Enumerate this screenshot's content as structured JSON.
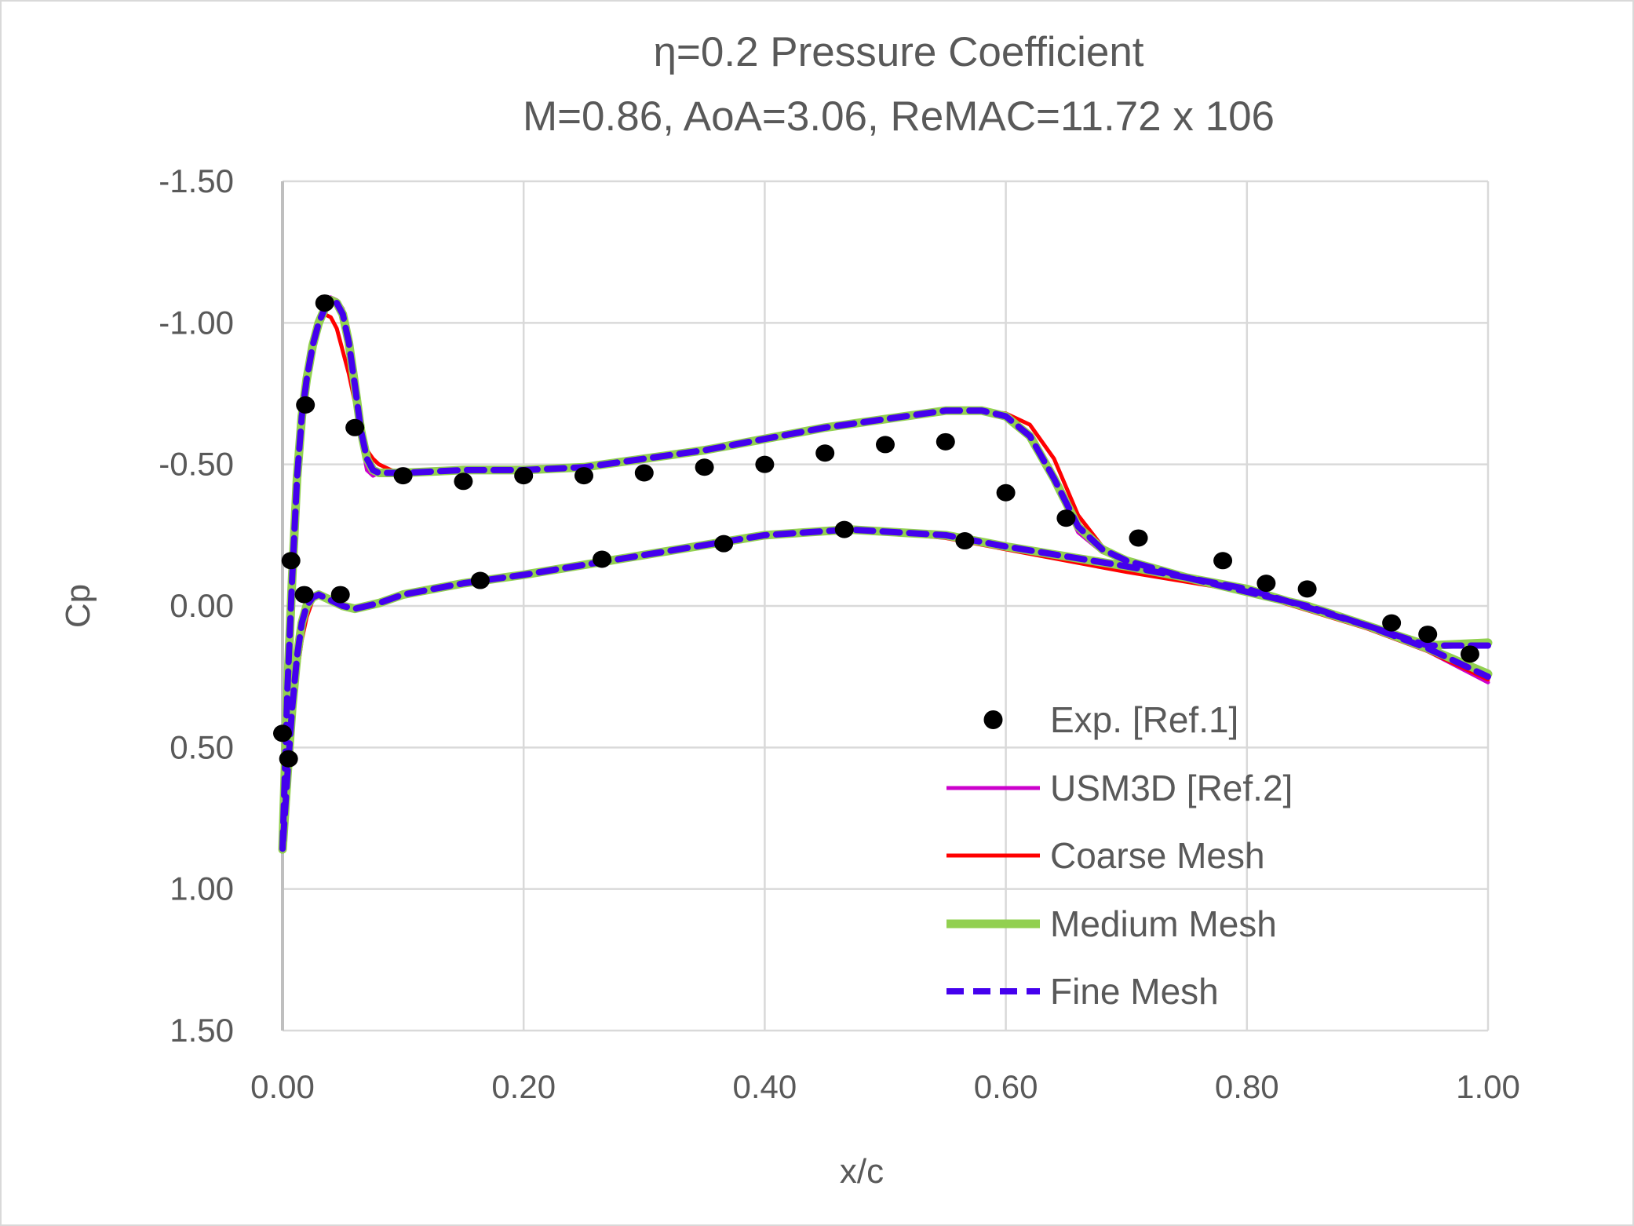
{
  "chart_data": {
    "type": "line",
    "title": "η=0.2 Pressure Coefficient",
    "subtitle": "M=0.86, AoA=3.06, ReMAC=11.72 x 106",
    "xlabel": "x/c",
    "ylabel": "Cp",
    "xlim": [
      0,
      1
    ],
    "ylim": [
      -1.5,
      1.5
    ],
    "y_reversed": true,
    "xticks": [
      "0.00",
      "0.20",
      "0.40",
      "0.60",
      "0.80",
      "1.00"
    ],
    "yticks": [
      "-1.50",
      "-1.00",
      "-0.50",
      "0.00",
      "0.50",
      "1.00",
      "1.50"
    ],
    "grid": true,
    "legend_position": "bottom-right",
    "x_upper": [
      0,
      0.004,
      0.008,
      0.012,
      0.016,
      0.02,
      0.025,
      0.03,
      0.035,
      0.04,
      0.045,
      0.05,
      0.055,
      0.06,
      0.065,
      0.07,
      0.075,
      0.08,
      0.09,
      0.1,
      0.15,
      0.2,
      0.25,
      0.3,
      0.35,
      0.4,
      0.45,
      0.5,
      0.55,
      0.58,
      0.6,
      0.62,
      0.64,
      0.66,
      0.68,
      0.7,
      0.75,
      0.8,
      0.85,
      0.9,
      0.95,
      1.0
    ],
    "x_lower": [
      0,
      0.004,
      0.008,
      0.012,
      0.016,
      0.02,
      0.025,
      0.03,
      0.04,
      0.05,
      0.06,
      0.08,
      0.1,
      0.15,
      0.2,
      0.3,
      0.4,
      0.47,
      0.55,
      0.6,
      0.7,
      0.8,
      0.9,
      0.95,
      1.0
    ],
    "experiment": {
      "name": "Exp. [Ref.1]",
      "color": "#000000",
      "points": [
        [
          0.0,
          0.45
        ],
        [
          0.005,
          0.54
        ],
        [
          0.007,
          -0.16
        ],
        [
          0.018,
          -0.04
        ],
        [
          0.019,
          -0.71
        ],
        [
          0.035,
          -1.07
        ],
        [
          0.048,
          -0.04
        ],
        [
          0.06,
          -0.63
        ],
        [
          0.1,
          -0.46
        ],
        [
          0.15,
          -0.44
        ],
        [
          0.2,
          -0.46
        ],
        [
          0.25,
          -0.46
        ],
        [
          0.3,
          -0.47
        ],
        [
          0.35,
          -0.49
        ],
        [
          0.4,
          -0.5
        ],
        [
          0.45,
          -0.54
        ],
        [
          0.5,
          -0.57
        ],
        [
          0.55,
          -0.58
        ],
        [
          0.6,
          -0.4
        ],
        [
          0.65,
          -0.31
        ],
        [
          0.71,
          -0.24
        ],
        [
          0.78,
          -0.16
        ],
        [
          0.816,
          -0.08
        ],
        [
          0.85,
          -0.06
        ],
        [
          0.92,
          0.06
        ],
        [
          0.95,
          0.1
        ],
        [
          0.985,
          0.17
        ],
        [
          0.164,
          -0.09
        ],
        [
          0.265,
          -0.165
        ],
        [
          0.366,
          -0.22
        ],
        [
          0.466,
          -0.27
        ],
        [
          0.566,
          -0.23
        ]
      ]
    },
    "series": [
      {
        "name": "USM3D [Ref.2]",
        "color": "#CC00CC",
        "style": "solid",
        "upper": [
          0.86,
          0.3,
          -0.1,
          -0.45,
          -0.67,
          -0.8,
          -0.92,
          -1.0,
          -1.06,
          -1.09,
          -1.08,
          -1.05,
          -0.96,
          -0.8,
          -0.6,
          -0.48,
          -0.46,
          -0.47,
          -0.47,
          -0.47,
          -0.48,
          -0.48,
          -0.49,
          -0.52,
          -0.55,
          -0.59,
          -0.63,
          -0.66,
          -0.69,
          -0.69,
          -0.67,
          -0.6,
          -0.44,
          -0.26,
          -0.19,
          -0.16,
          -0.1,
          -0.05,
          0.0,
          0.08,
          0.16,
          0.27
        ],
        "lower": [
          0.86,
          0.6,
          0.36,
          0.18,
          0.06,
          0.0,
          -0.03,
          -0.04,
          -0.02,
          0.0,
          0.01,
          -0.01,
          -0.04,
          -0.08,
          -0.11,
          -0.18,
          -0.25,
          -0.27,
          -0.25,
          -0.21,
          -0.14,
          -0.06,
          0.07,
          0.16,
          0.27
        ]
      },
      {
        "name": "Coarse Mesh",
        "color": "#FF0000",
        "style": "solid",
        "upper": [
          0.86,
          0.3,
          -0.1,
          -0.45,
          -0.67,
          -0.8,
          -0.92,
          -1.0,
          -1.03,
          -1.02,
          -0.98,
          -0.9,
          -0.82,
          -0.72,
          -0.62,
          -0.55,
          -0.52,
          -0.5,
          -0.48,
          -0.47,
          -0.48,
          -0.48,
          -0.49,
          -0.52,
          -0.55,
          -0.59,
          -0.63,
          -0.66,
          -0.69,
          -0.69,
          -0.68,
          -0.64,
          -0.52,
          -0.32,
          -0.21,
          -0.16,
          -0.1,
          -0.05,
          0.0,
          0.08,
          0.16,
          0.26
        ],
        "lower": [
          0.86,
          0.62,
          0.4,
          0.24,
          0.12,
          0.04,
          -0.02,
          -0.04,
          -0.02,
          0.0,
          0.01,
          -0.01,
          -0.04,
          -0.08,
          -0.11,
          -0.18,
          -0.25,
          -0.27,
          -0.24,
          -0.2,
          -0.12,
          -0.05,
          0.08,
          0.16,
          0.26
        ]
      },
      {
        "name": "Medium Mesh",
        "color": "#92D050",
        "style": "solid",
        "upper": [
          0.86,
          0.3,
          -0.1,
          -0.45,
          -0.67,
          -0.8,
          -0.92,
          -1.0,
          -1.05,
          -1.08,
          -1.07,
          -1.03,
          -0.93,
          -0.78,
          -0.62,
          -0.52,
          -0.48,
          -0.47,
          -0.47,
          -0.47,
          -0.48,
          -0.48,
          -0.49,
          -0.52,
          -0.55,
          -0.59,
          -0.63,
          -0.66,
          -0.69,
          -0.69,
          -0.67,
          -0.6,
          -0.45,
          -0.28,
          -0.2,
          -0.16,
          -0.1,
          -0.05,
          0.0,
          0.07,
          0.14,
          0.13
        ],
        "lower": [
          0.86,
          0.6,
          0.36,
          0.18,
          0.06,
          0.0,
          -0.03,
          -0.04,
          -0.02,
          0.0,
          0.01,
          -0.01,
          -0.04,
          -0.08,
          -0.11,
          -0.18,
          -0.25,
          -0.27,
          -0.25,
          -0.21,
          -0.14,
          -0.06,
          0.07,
          0.15,
          0.24
        ]
      },
      {
        "name": "Fine Mesh",
        "color": "#4400EE",
        "style": "dashed",
        "upper": [
          0.86,
          0.3,
          -0.1,
          -0.45,
          -0.67,
          -0.8,
          -0.92,
          -1.0,
          -1.05,
          -1.08,
          -1.07,
          -1.03,
          -0.93,
          -0.78,
          -0.62,
          -0.52,
          -0.48,
          -0.47,
          -0.47,
          -0.47,
          -0.48,
          -0.48,
          -0.49,
          -0.52,
          -0.55,
          -0.59,
          -0.63,
          -0.66,
          -0.69,
          -0.69,
          -0.67,
          -0.6,
          -0.45,
          -0.28,
          -0.2,
          -0.16,
          -0.1,
          -0.05,
          0.0,
          0.07,
          0.14,
          0.14
        ],
        "lower": [
          0.86,
          0.6,
          0.36,
          0.18,
          0.06,
          0.0,
          -0.03,
          -0.04,
          -0.02,
          0.0,
          0.01,
          -0.01,
          -0.04,
          -0.08,
          -0.11,
          -0.18,
          -0.25,
          -0.27,
          -0.25,
          -0.21,
          -0.14,
          -0.06,
          0.07,
          0.15,
          0.25
        ]
      }
    ]
  }
}
